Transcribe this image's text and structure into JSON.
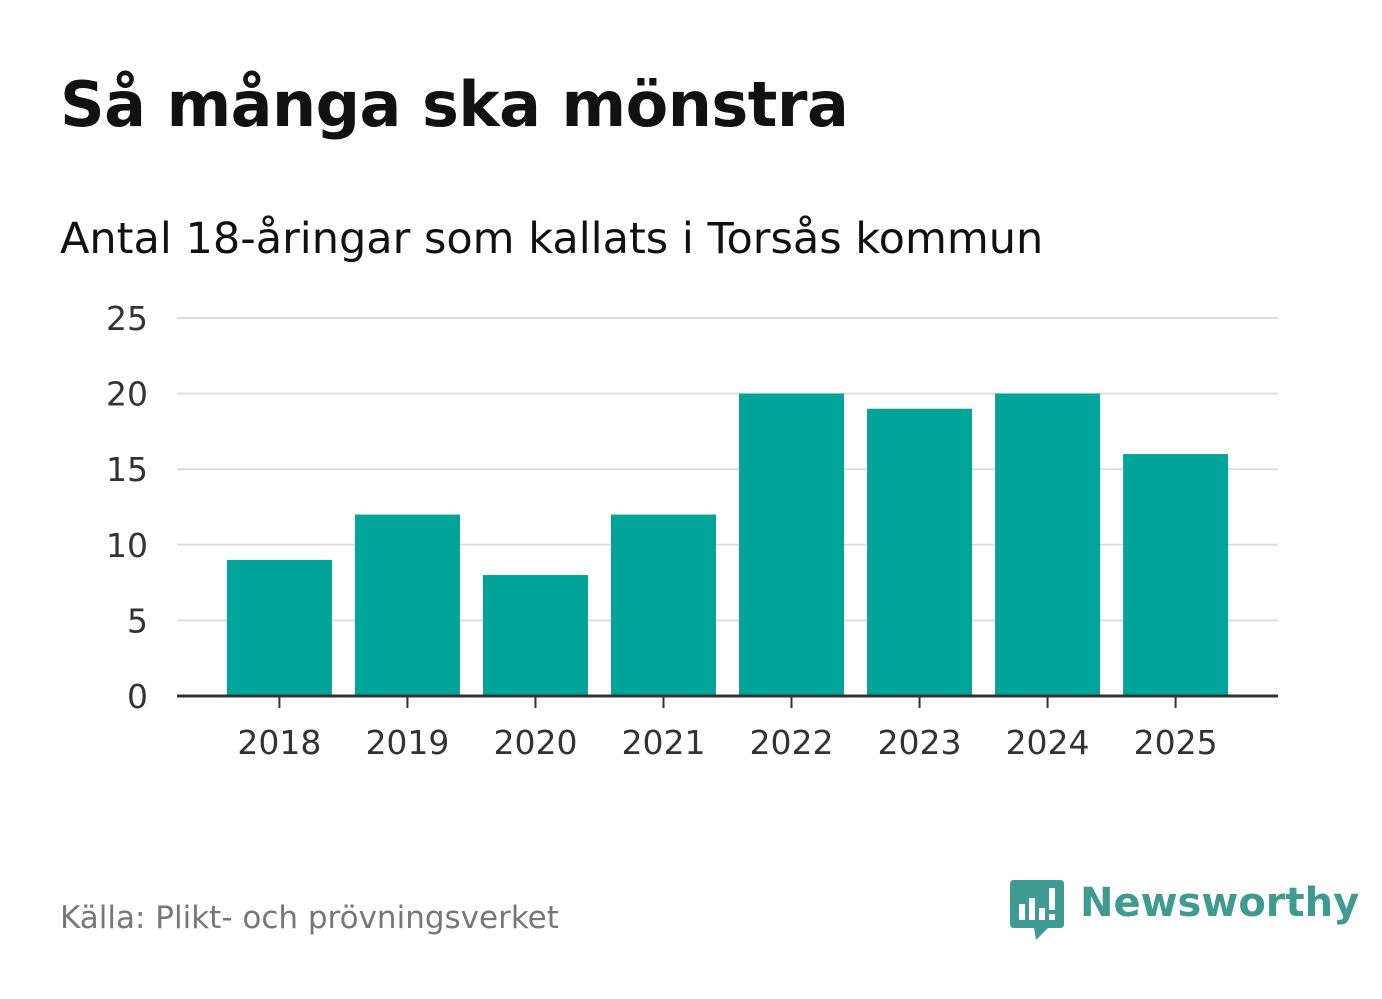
{
  "header": {
    "title": "Så många ska mönstra",
    "subtitle": "Antal 18-åringar som kallats i Torsås kommun"
  },
  "footer": {
    "source": "Källa: Plikt- och prövningsverket",
    "brand": "Newsworthy",
    "brand_icon": "newsworthy-logo-icon"
  },
  "colors": {
    "bar": "#00a499",
    "grid": "#dddddd",
    "axis": "#333333",
    "brand": "#3f9a92"
  },
  "chart_data": {
    "type": "bar",
    "categories": [
      "2018",
      "2019",
      "2020",
      "2021",
      "2022",
      "2023",
      "2024",
      "2025"
    ],
    "values": [
      9,
      12,
      8,
      12,
      20,
      19,
      20,
      16
    ],
    "title": "Så många ska mönstra",
    "subtitle": "Antal 18-åringar som kallats i Torsås kommun",
    "xlabel": "",
    "ylabel": "",
    "ylim": [
      0,
      25
    ],
    "yticks": [
      0,
      5,
      10,
      15,
      20,
      25
    ],
    "grid": true,
    "legend": "none"
  }
}
